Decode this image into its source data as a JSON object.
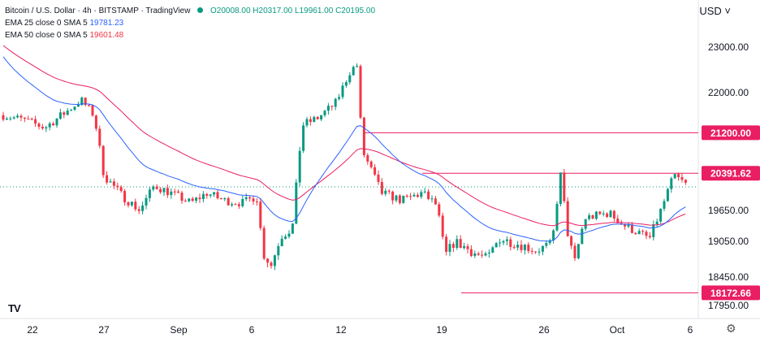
{
  "header": {
    "symbol": "Bitcoin / U.S. Dollar",
    "interval": "4h",
    "exchange": "BITSTAMP",
    "source": "TradingView",
    "ohlc": {
      "o": "O20008.00",
      "h": "H20317.00",
      "l": "L19961.00",
      "c": "C20195.00"
    },
    "indicators": [
      {
        "label": "EMA 25 close 0 SMA 5",
        "value": "19781.23",
        "color": "#2962ff"
      },
      {
        "label": "EMA 50 close 0 SMA 5",
        "value": "19601.48",
        "color": "#e91e63"
      }
    ]
  },
  "currency": "USD",
  "colors": {
    "up": "#089981",
    "down": "#f23645",
    "ema25": "#2962ff",
    "ema50": "#e91e63",
    "level": "#e91e63",
    "badge": "#e91e63"
  },
  "chart_data": {
    "type": "candlestick",
    "y_axis": {
      "ticks": [
        "23000.00",
        "22000.00",
        "19650.00",
        "19050.00",
        "18450.00",
        "17950.00"
      ]
    },
    "x_axis": {
      "ticks": [
        "22",
        "27",
        "Sep",
        "6",
        "12",
        "19",
        "26",
        "Oct",
        "6"
      ]
    },
    "levels": [
      {
        "value": 21200,
        "label": "21200.00"
      },
      {
        "value": 20391.62,
        "label": "20391.62"
      },
      {
        "value": 18172.66,
        "label": "18172.66"
      }
    ],
    "series": [
      {
        "name": "EMA 25 close 0 SMA 5"
      },
      {
        "name": "EMA 50 close 0 SMA 5"
      }
    ]
  }
}
